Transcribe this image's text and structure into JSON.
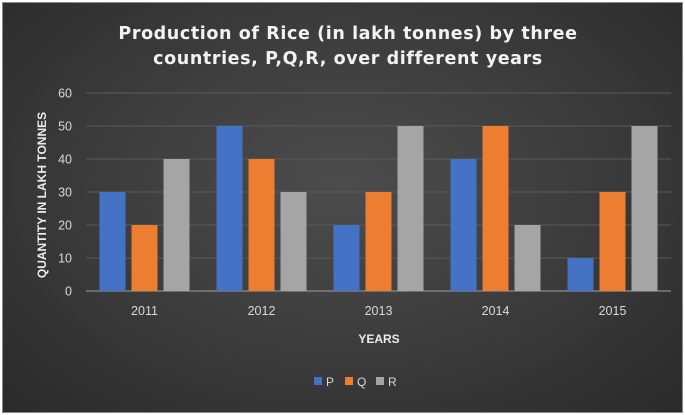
{
  "chart_data": {
    "type": "bar",
    "title_lines": [
      "Production of Rice (in lakh tonnes) by three",
      "countries, P,Q,R, over different years"
    ],
    "xlabel": "YEARS",
    "ylabel": "QUANTITY IN LAKH TONNES",
    "categories": [
      "2011",
      "2012",
      "2013",
      "2014",
      "2015"
    ],
    "ylim": [
      0,
      60
    ],
    "yticks": [
      "0",
      "10",
      "20",
      "30",
      "40",
      "50",
      "60"
    ],
    "grid": true,
    "legend_position": "bottom",
    "series": [
      {
        "name": "P",
        "color": "#4472c4",
        "values": [
          30,
          50,
          20,
          40,
          10
        ]
      },
      {
        "name": "Q",
        "color": "#ed7d31",
        "values": [
          20,
          40,
          30,
          50,
          30
        ]
      },
      {
        "name": "R",
        "color": "#a5a5a5",
        "values": [
          40,
          30,
          50,
          20,
          50
        ]
      }
    ]
  }
}
